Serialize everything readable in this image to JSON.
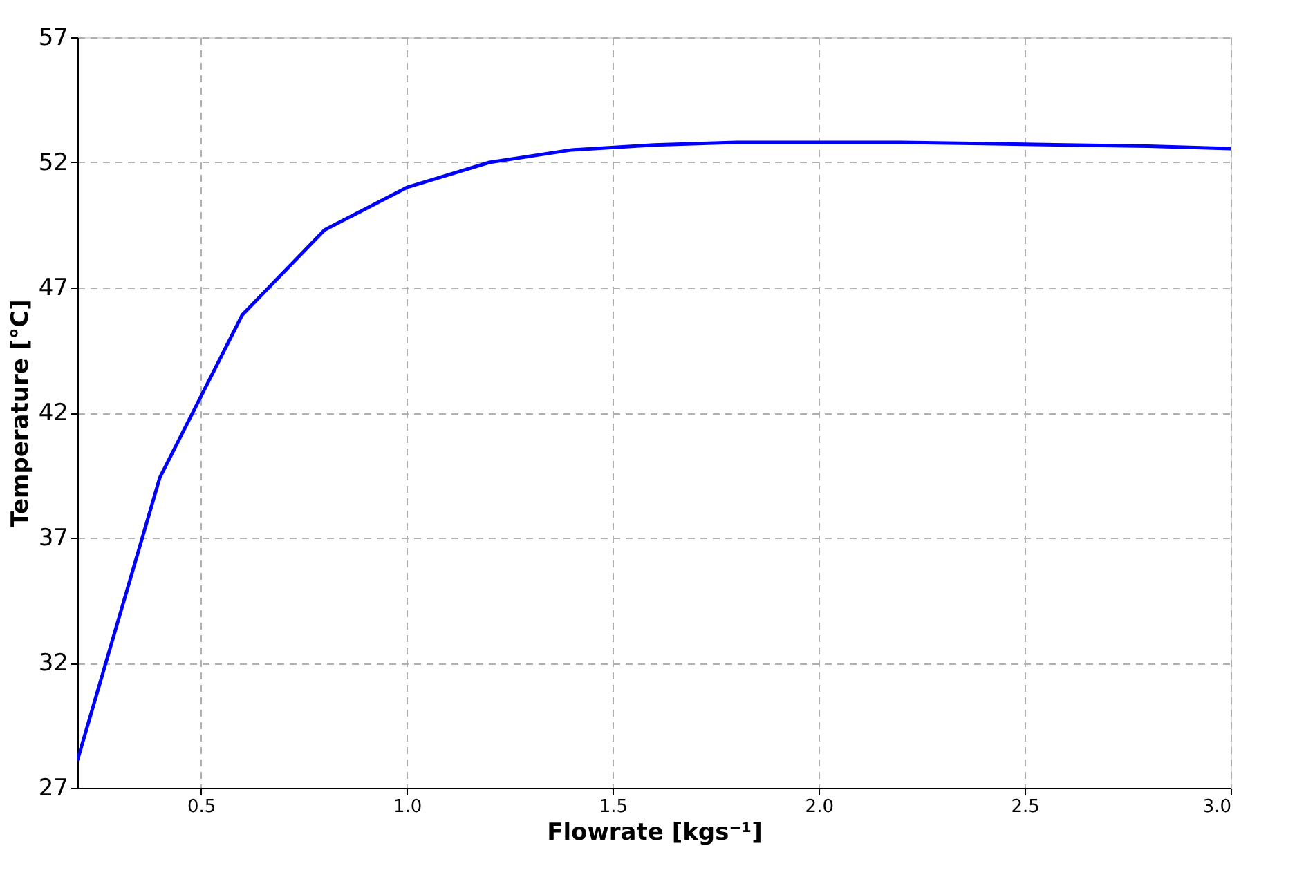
{
  "chart_data": {
    "type": "line",
    "xlabel": "Flowrate [kgs⁻¹]",
    "ylabel": "Temperature [°C]",
    "x": [
      0.2,
      0.4,
      0.6,
      0.8,
      1.0,
      1.2,
      1.4,
      1.6,
      1.8,
      2.0,
      2.2,
      2.4,
      2.6,
      2.8,
      3.0
    ],
    "series": [
      {
        "color": "#0000ff",
        "values": [
          28.1,
          39.4,
          45.9,
          49.3,
          51.0,
          52.0,
          52.5,
          52.7,
          52.8,
          52.8,
          52.8,
          52.75,
          52.7,
          52.65,
          52.55
        ]
      }
    ],
    "xlim": [
      0.2,
      3.0
    ],
    "ylim": [
      27,
      57
    ],
    "xticks": [
      0.5,
      {
        "value": 1.0,
        "label": "1.0"
      },
      1.5,
      {
        "value": 2.0,
        "label": "2.0"
      },
      2.5,
      {
        "value": 3.0,
        "label": "3.0"
      }
    ],
    "yticks": [
      27,
      32,
      37,
      42,
      47,
      52,
      57
    ],
    "grid": true,
    "line_style": "solid",
    "marker": "none"
  }
}
